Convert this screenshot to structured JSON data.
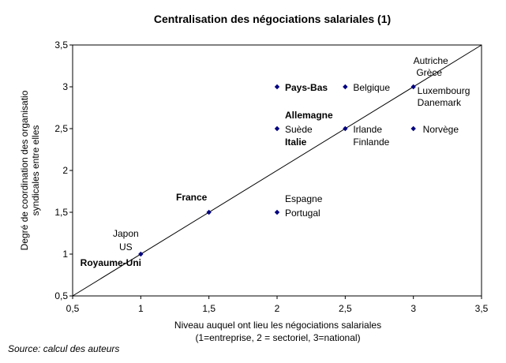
{
  "chart_data": {
    "type": "scatter",
    "title": "Centralisation des négociations salariales (1)",
    "xlabel_lines": [
      "Niveau auquel ont lieu les négociations salariales",
      "(1=entreprise, 2 = sectoriel, 3=national)"
    ],
    "ylabel_lines": [
      "Degré de coordination des organisatio",
      "syndicales entre elles"
    ],
    "xlim": [
      0.5,
      3.5
    ],
    "ylim": [
      0.5,
      3.5
    ],
    "x_ticks": [
      "0,5",
      "1",
      "1,5",
      "2",
      "2,5",
      "3",
      "3,5"
    ],
    "y_ticks": [
      "0,5",
      "1",
      "1,5",
      "2",
      "2,5",
      "3",
      "3,5"
    ],
    "grid": false,
    "legend": "none",
    "marker_color": "#000080",
    "reference_line": {
      "from": [
        0.5,
        0.5
      ],
      "to": [
        3.5,
        3.5
      ]
    },
    "points": [
      {
        "x": 1,
        "y": 1
      },
      {
        "x": 1.5,
        "y": 1.5
      },
      {
        "x": 2,
        "y": 1.5
      },
      {
        "x": 2,
        "y": 2.5
      },
      {
        "x": 2,
        "y": 3
      },
      {
        "x": 2.5,
        "y": 2.5
      },
      {
        "x": 2.5,
        "y": 3
      },
      {
        "x": 3,
        "y": 2.5
      },
      {
        "x": 3,
        "y": 3
      }
    ],
    "labels": [
      {
        "text": "Japon",
        "bold": false
      },
      {
        "text": "US",
        "bold": false
      },
      {
        "text": "Royaume-Uni",
        "bold": true
      },
      {
        "text": "France",
        "bold": true
      },
      {
        "text": "Espagne",
        "bold": false
      },
      {
        "text": "Portugal",
        "bold": false
      },
      {
        "text": "Allemagne",
        "bold": true
      },
      {
        "text": "Suède",
        "bold": false
      },
      {
        "text": "Italie",
        "bold": true
      },
      {
        "text": "Pays-Bas",
        "bold": true
      },
      {
        "text": "Belgique",
        "bold": false
      },
      {
        "text": "Irlande",
        "bold": false
      },
      {
        "text": "Finlande",
        "bold": false
      },
      {
        "text": "Autriche",
        "bold": false
      },
      {
        "text": "Grèce",
        "bold": false
      },
      {
        "text": "Luxembourg",
        "bold": false
      },
      {
        "text": "Danemark",
        "bold": false
      },
      {
        "text": "Norvège",
        "bold": false
      }
    ]
  },
  "source": "Source: calcul des auteurs"
}
